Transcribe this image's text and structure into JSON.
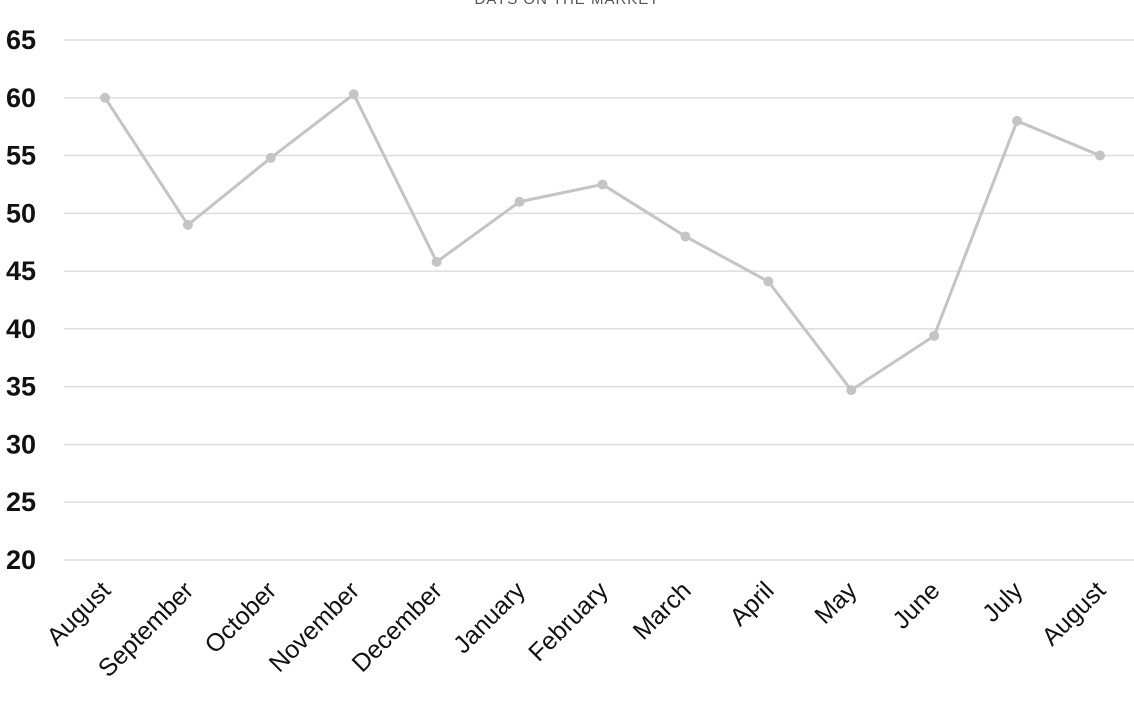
{
  "chart_data": {
    "type": "line",
    "title": "DAYS ON THE MARKET",
    "xlabel": "",
    "ylabel": "",
    "categories": [
      "August",
      "September",
      "October",
      "November",
      "December",
      "January",
      "February",
      "March",
      "April",
      "May",
      "June",
      "July",
      "August"
    ],
    "series": [
      {
        "values": [
          60,
          49,
          54.8,
          60.3,
          45.8,
          51,
          52.5,
          48,
          44.1,
          34.7,
          39.4,
          58,
          55
        ]
      }
    ],
    "ylim": [
      20,
      65
    ],
    "yticks": [
      "20",
      "25",
      "30",
      "35",
      "40",
      "45",
      "50",
      "55",
      "60",
      "65"
    ],
    "grid": true,
    "legend": "none",
    "colors": {
      "line": "#c4c4c4",
      "grid": "#dddddd"
    }
  }
}
